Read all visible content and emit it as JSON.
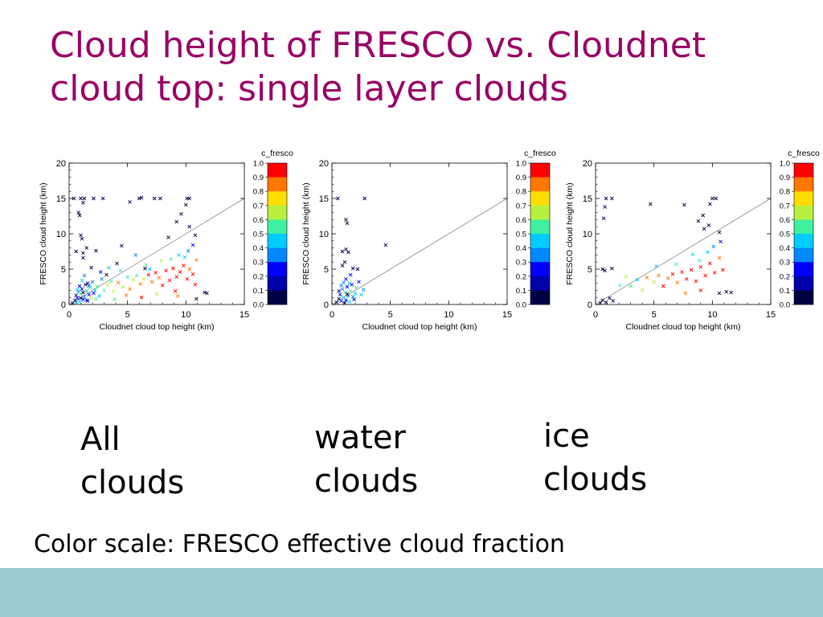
{
  "title": [
    "Cloud height of FRESCO vs. Cloudnet",
    "cloud top: single layer clouds"
  ],
  "captions": [
    [
      "All",
      "clouds"
    ],
    [
      "water",
      "clouds"
    ],
    [
      "ice",
      "clouds"
    ]
  ],
  "footnote": "Color scale: FRESCO effective cloud fraction",
  "colorbar": {
    "title": "c_fresco",
    "ticks": [
      "1.0",
      "0.9",
      "0.8",
      "0.7",
      "0.6",
      "0.5",
      "0.4",
      "0.3",
      "0.2",
      "0.1",
      "0.0"
    ],
    "colors": [
      "#ff0000",
      "#ff7700",
      "#ffdd00",
      "#b8f040",
      "#40f0a0",
      "#00ccff",
      "#0088ff",
      "#0000ff",
      "#0000aa",
      "#000044"
    ]
  },
  "chart_data": [
    {
      "type": "scatter",
      "xlabel": "Cloudnet cloud top height (km)",
      "ylabel": "FRESCO cloud height (km)",
      "xlim": [
        0,
        15
      ],
      "ylim": [
        0,
        20
      ],
      "xticks": [
        "0",
        "5",
        "10",
        "15"
      ],
      "yticks": [
        "0",
        "5",
        "10",
        "15",
        "20"
      ],
      "one_to_one_line": true,
      "color_scale": "c_fresco",
      "points": [
        [
          0.4,
          15,
          0.0
        ],
        [
          1.0,
          15,
          0.0
        ],
        [
          1.3,
          15,
          0.0
        ],
        [
          1.2,
          14.4,
          0.0
        ],
        [
          2.1,
          15,
          0.0
        ],
        [
          2.9,
          15,
          0.0
        ],
        [
          5.2,
          14.5,
          0.0
        ],
        [
          6.0,
          15,
          0.0
        ],
        [
          6.2,
          15.1,
          0.0
        ],
        [
          7.3,
          15,
          0.0
        ],
        [
          7.8,
          15,
          0.0
        ],
        [
          10.1,
          15,
          0.0
        ],
        [
          10.3,
          15,
          0.0
        ],
        [
          10.0,
          14.1,
          0.0
        ],
        [
          9.6,
          12.8,
          0.0
        ],
        [
          10.3,
          11.0,
          0.0
        ],
        [
          9.2,
          11.7,
          0.0
        ],
        [
          10.8,
          9.8,
          0.0
        ],
        [
          8.5,
          9.5,
          0.0
        ],
        [
          0.8,
          13.0,
          0.0
        ],
        [
          0.9,
          12.6,
          0.0
        ],
        [
          1.0,
          9.8,
          0.0
        ],
        [
          1.1,
          9.3,
          0.0
        ],
        [
          0.6,
          7.5,
          0.0
        ],
        [
          1.2,
          7.3,
          0.0
        ],
        [
          1.5,
          8.0,
          0.0
        ],
        [
          1.2,
          6.6,
          0.0
        ],
        [
          2.3,
          7.6,
          0.0
        ],
        [
          1.9,
          5.2,
          0.0
        ],
        [
          4.5,
          8.3,
          0.0
        ],
        [
          6.5,
          5.1,
          0.0
        ],
        [
          3.2,
          4.2,
          0.0
        ],
        [
          4.1,
          5.8,
          0.0
        ],
        [
          11.6,
          1.7,
          0.0
        ],
        [
          11.8,
          1.6,
          0.0
        ],
        [
          10.9,
          0.8,
          0.0
        ],
        [
          0.3,
          0.2,
          0.0
        ],
        [
          0.5,
          0.6,
          0.1
        ],
        [
          0.6,
          1.3,
          0.2
        ],
        [
          0.7,
          0.9,
          0.3
        ],
        [
          0.8,
          1.8,
          0.4
        ],
        [
          0.9,
          0.4,
          0.5
        ],
        [
          1.0,
          1.5,
          0.6
        ],
        [
          1.1,
          2.2,
          0.2
        ],
        [
          1.2,
          0.7,
          0.3
        ],
        [
          1.3,
          1.1,
          0.4
        ],
        [
          1.4,
          2.8,
          0.1
        ],
        [
          1.5,
          1.9,
          0.5
        ],
        [
          1.6,
          0.5,
          0.2
        ],
        [
          1.7,
          1.4,
          0.3
        ],
        [
          1.8,
          2.4,
          0.6
        ],
        [
          1.9,
          0.9,
          0.7
        ],
        [
          2.0,
          3.2,
          0.4
        ],
        [
          2.1,
          1.6,
          0.3
        ],
        [
          2.2,
          2.0,
          0.5
        ],
        [
          2.3,
          0.8,
          0.6
        ],
        [
          0.9,
          2.6,
          0.3
        ],
        [
          1.1,
          3.4,
          0.5
        ],
        [
          1.3,
          4.1,
          0.4
        ],
        [
          1.6,
          3.0,
          0.2
        ],
        [
          0.7,
          2.1,
          0.5
        ],
        [
          0.6,
          0.3,
          0.4
        ],
        [
          1.0,
          0.9,
          0.1
        ],
        [
          1.2,
          1.7,
          0.0
        ],
        [
          1.5,
          0.6,
          0.3
        ],
        [
          1.7,
          2.6,
          0.4
        ],
        [
          2.4,
          2.5,
          0.6
        ],
        [
          2.6,
          1.2,
          0.5
        ],
        [
          2.8,
          3.6,
          0.4
        ],
        [
          3.0,
          2.0,
          0.6
        ],
        [
          3.3,
          2.8,
          0.7
        ],
        [
          3.6,
          3.3,
          0.6
        ],
        [
          3.8,
          1.9,
          0.7
        ],
        [
          4.2,
          3.1,
          0.8
        ],
        [
          4.6,
          2.5,
          0.7
        ],
        [
          5.0,
          3.9,
          0.6
        ],
        [
          5.2,
          2.2,
          0.8
        ],
        [
          5.5,
          3.5,
          0.7
        ],
        [
          5.8,
          4.1,
          0.6
        ],
        [
          6.1,
          2.9,
          0.8
        ],
        [
          6.4,
          3.6,
          0.7
        ],
        [
          6.8,
          4.2,
          0.9
        ],
        [
          7.1,
          3.2,
          0.8
        ],
        [
          7.4,
          4.5,
          0.9
        ],
        [
          7.7,
          3.8,
          0.8
        ],
        [
          8.0,
          2.7,
          0.9
        ],
        [
          8.3,
          4.8,
          1.0
        ],
        [
          8.6,
          3.4,
          0.9
        ],
        [
          8.9,
          5.1,
          1.0
        ],
        [
          9.2,
          3.9,
          0.9
        ],
        [
          9.5,
          4.6,
          1.0
        ],
        [
          9.8,
          5.5,
          0.9
        ],
        [
          10.1,
          3.6,
          1.0
        ],
        [
          10.3,
          5.0,
          0.8
        ],
        [
          10.6,
          4.3,
          0.9
        ],
        [
          10.9,
          6.3,
          0.8
        ],
        [
          10.8,
          2.8,
          1.0
        ],
        [
          9.1,
          1.9,
          0.9
        ],
        [
          7.9,
          6.2,
          0.7
        ],
        [
          6.6,
          5.6,
          0.6
        ],
        [
          9.4,
          7.0,
          0.5
        ],
        [
          10.2,
          7.6,
          0.4
        ],
        [
          10.6,
          8.4,
          0.3
        ],
        [
          9.9,
          6.7,
          0.5
        ],
        [
          8.7,
          6.4,
          0.6
        ],
        [
          5.7,
          7.0,
          0.4
        ],
        [
          6.9,
          5.0,
          0.5
        ],
        [
          4.4,
          4.8,
          0.6
        ],
        [
          3.4,
          5.2,
          0.5
        ],
        [
          2.7,
          4.6,
          0.3
        ],
        [
          9.3,
          1.2,
          0.8
        ],
        [
          7.5,
          1.5,
          0.7
        ],
        [
          6.2,
          1.0,
          0.9
        ],
        [
          4.9,
          1.3,
          0.8
        ],
        [
          3.9,
          0.7,
          0.6
        ]
      ]
    },
    {
      "type": "scatter",
      "xlabel": "Cloudnet cloud top height (km)",
      "ylabel": "FRESCO cloud height (km)",
      "xlim": [
        0,
        15
      ],
      "ylim": [
        0,
        20
      ],
      "xticks": [
        "0",
        "5",
        "10",
        "15"
      ],
      "yticks": [
        "0",
        "5",
        "10",
        "15",
        "20"
      ],
      "one_to_one_line": true,
      "color_scale": "c_fresco",
      "points": [
        [
          0.5,
          15,
          0.0
        ],
        [
          2.8,
          15,
          0.0
        ],
        [
          1.2,
          12.0,
          0.0
        ],
        [
          1.3,
          11.5,
          0.0
        ],
        [
          0.9,
          7.5,
          0.0
        ],
        [
          1.2,
          7.8,
          0.0
        ],
        [
          1.4,
          7.4,
          0.0
        ],
        [
          4.6,
          8.4,
          0.0
        ],
        [
          1.8,
          5.1,
          0.0
        ],
        [
          2.2,
          5.0,
          0.0
        ],
        [
          1.1,
          6.0,
          0.0
        ],
        [
          0.9,
          5.5,
          0.0
        ],
        [
          0.4,
          0.3,
          0.0
        ],
        [
          0.6,
          0.8,
          0.1
        ],
        [
          0.7,
          1.4,
          0.2
        ],
        [
          0.8,
          0.5,
          0.3
        ],
        [
          0.9,
          2.2,
          0.4
        ],
        [
          1.0,
          1.0,
          0.5
        ],
        [
          1.1,
          1.7,
          0.6
        ],
        [
          1.2,
          0.6,
          0.2
        ],
        [
          1.3,
          2.5,
          0.3
        ],
        [
          1.4,
          1.2,
          0.4
        ],
        [
          1.5,
          0.4,
          0.5
        ],
        [
          1.6,
          1.9,
          0.6
        ],
        [
          1.7,
          2.8,
          0.3
        ],
        [
          1.8,
          1.1,
          0.4
        ],
        [
          1.9,
          0.7,
          0.2
        ],
        [
          2.0,
          1.6,
          0.5
        ],
        [
          2.1,
          2.4,
          0.6
        ],
        [
          1.0,
          3.1,
          0.4
        ],
        [
          1.2,
          3.6,
          0.3
        ],
        [
          1.5,
          3.0,
          0.5
        ],
        [
          0.8,
          2.7,
          0.4
        ],
        [
          1.1,
          0.2,
          0.0
        ],
        [
          2.3,
          3.2,
          0.3
        ],
        [
          2.5,
          1.4,
          0.5
        ],
        [
          2.7,
          2.1,
          0.4
        ],
        [
          1.6,
          4.2,
          0.3
        ],
        [
          0.6,
          1.9,
          0.2
        ],
        [
          1.3,
          1.5,
          0.1
        ]
      ]
    },
    {
      "type": "scatter",
      "xlabel": "Cloudnet cloud top height (km)",
      "ylabel": "FRESCO cloud height (km)",
      "xlim": [
        0,
        15
      ],
      "ylim": [
        0,
        20
      ],
      "xticks": [
        "0",
        "5",
        "10",
        "15"
      ],
      "yticks": [
        "0",
        "5",
        "10",
        "15",
        "20"
      ],
      "one_to_one_line": true,
      "color_scale": "c_fresco",
      "points": [
        [
          0.9,
          15,
          0.0
        ],
        [
          1.4,
          15,
          0.0
        ],
        [
          0.8,
          13.8,
          0.0
        ],
        [
          0.7,
          12.2,
          0.0
        ],
        [
          4.7,
          14.2,
          0.0
        ],
        [
          7.6,
          14.1,
          0.0
        ],
        [
          10.0,
          15,
          0.0
        ],
        [
          10.3,
          15,
          0.0
        ],
        [
          9.8,
          14.2,
          0.0
        ],
        [
          9.2,
          12.6,
          0.0
        ],
        [
          9.7,
          11.2,
          0.0
        ],
        [
          8.8,
          11.8,
          0.0
        ],
        [
          10.6,
          10.2,
          0.0
        ],
        [
          9.3,
          10.7,
          0.0
        ],
        [
          0.8,
          4.8,
          0.0
        ],
        [
          0.6,
          5.0,
          0.0
        ],
        [
          1.4,
          5.1,
          0.0
        ],
        [
          11.2,
          1.8,
          0.0
        ],
        [
          11.6,
          1.7,
          0.0
        ],
        [
          10.6,
          1.6,
          0.0
        ],
        [
          0.4,
          0.2,
          0.0
        ],
        [
          0.6,
          0.6,
          0.0
        ],
        [
          0.9,
          0.3,
          0.1
        ],
        [
          1.2,
          0.9,
          0.0
        ],
        [
          1.5,
          0.5,
          0.1
        ],
        [
          2.1,
          2.7,
          0.6
        ],
        [
          2.6,
          3.9,
          0.7
        ],
        [
          3.0,
          2.6,
          0.6
        ],
        [
          3.6,
          3.5,
          0.5
        ],
        [
          4.0,
          2.1,
          0.7
        ],
        [
          4.4,
          3.8,
          0.8
        ],
        [
          5.0,
          3.2,
          0.7
        ],
        [
          5.4,
          4.1,
          0.8
        ],
        [
          5.8,
          2.6,
          0.9
        ],
        [
          6.2,
          3.7,
          0.8
        ],
        [
          6.6,
          4.3,
          0.9
        ],
        [
          7.0,
          3.1,
          0.8
        ],
        [
          7.4,
          4.6,
          1.0
        ],
        [
          7.8,
          3.6,
          0.9
        ],
        [
          8.2,
          4.9,
          1.0
        ],
        [
          8.6,
          3.3,
          0.9
        ],
        [
          9.0,
          5.3,
          1.0
        ],
        [
          9.4,
          4.1,
          0.9
        ],
        [
          9.8,
          5.8,
          1.0
        ],
        [
          10.2,
          4.5,
          0.9
        ],
        [
          10.6,
          6.6,
          0.8
        ],
        [
          10.9,
          4.9,
          1.0
        ],
        [
          8.9,
          6.2,
          0.6
        ],
        [
          9.6,
          7.4,
          0.5
        ],
        [
          10.1,
          8.2,
          0.4
        ],
        [
          10.7,
          8.9,
          0.3
        ],
        [
          8.3,
          7.1,
          0.5
        ],
        [
          9.0,
          2.0,
          0.9
        ],
        [
          7.7,
          1.6,
          0.8
        ],
        [
          6.9,
          5.7,
          0.6
        ],
        [
          5.2,
          5.4,
          0.5
        ]
      ]
    }
  ]
}
